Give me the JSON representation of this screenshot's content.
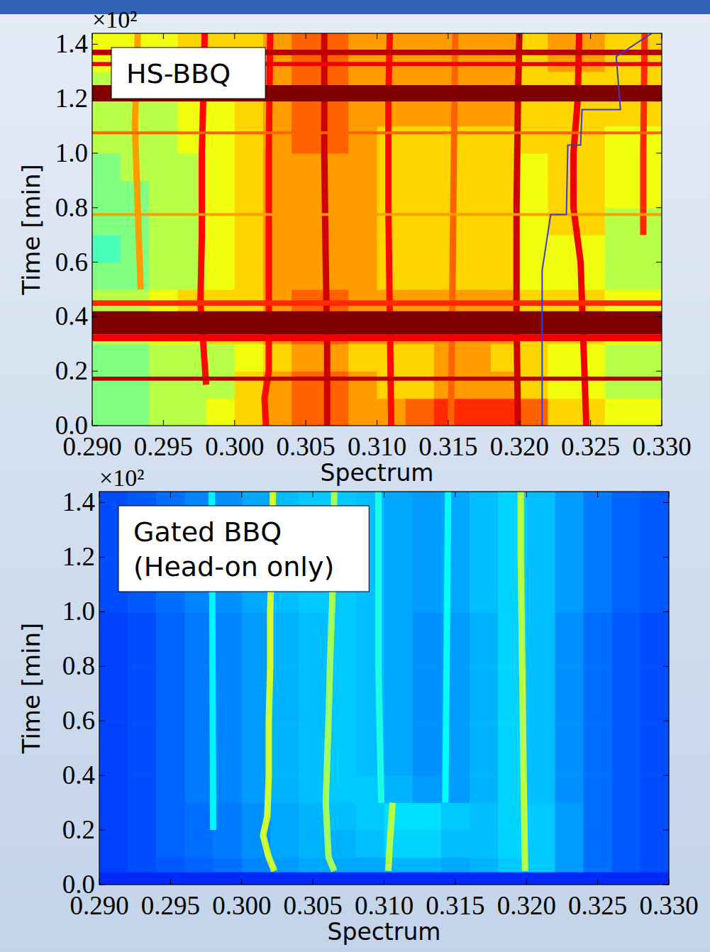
{
  "chart_data": [
    {
      "type": "spectrogram",
      "annotation": [
        "HS-BBQ"
      ],
      "x_label": "Spectrum",
      "y_label": "Time [min]",
      "y_offset_text": "×10²",
      "xlim": [
        0.29,
        0.33
      ],
      "ylim": [
        0,
        1.44
      ],
      "xticks": [
        {
          "value": 0.29,
          "label": "0.290"
        },
        0.295,
        {
          "value": 0.3,
          "label": "0.300"
        },
        0.305,
        {
          "value": 0.31,
          "label": "0.310"
        },
        0.315,
        {
          "value": 0.32,
          "label": "0.320"
        },
        0.325,
        {
          "value": 0.33,
          "label": "0.330"
        }
      ],
      "yticks": [
        {
          "value": 0,
          "label": "0.0"
        },
        0.2,
        0.4,
        0.6,
        0.8,
        {
          "value": 1,
          "label": "1.0"
        },
        1.2,
        1.4
      ],
      "grid": false,
      "zlim": [
        0,
        9
      ],
      "x_edges": [
        0.29,
        0.292,
        0.294,
        0.296,
        0.298,
        0.3,
        0.302,
        0.304,
        0.306,
        0.308,
        0.31,
        0.312,
        0.314,
        0.316,
        0.318,
        0.32,
        0.322,
        0.324,
        0.326,
        0.328,
        0.33
      ],
      "y_edges": [
        0,
        0.1,
        0.2,
        0.3,
        0.4,
        0.5,
        0.6,
        0.7,
        0.8,
        0.9,
        1,
        1.1,
        1.2,
        1.3,
        1.4,
        1.5
      ],
      "cells": [
        [
          4.5,
          4.5,
          5,
          5,
          5.5,
          6,
          6.5,
          7,
          7,
          6.5,
          6.5,
          7,
          7.5,
          7.5,
          7.5,
          7,
          6,
          6,
          5.5,
          5.5
        ],
        [
          4.5,
          4.5,
          5,
          5,
          5,
          6,
          6.5,
          7,
          7,
          6.5,
          6,
          6,
          6.5,
          6.5,
          6.5,
          6,
          5.5,
          5.5,
          5,
          5
        ],
        [
          4.5,
          4.5,
          5,
          5,
          5,
          5.5,
          6,
          6.5,
          6.5,
          6,
          6,
          6,
          6.5,
          6.5,
          6,
          6,
          5.5,
          5.5,
          5,
          5
        ],
        [
          5,
          5,
          5.5,
          5.5,
          6,
          6,
          6.5,
          7,
          7,
          6.5,
          6.5,
          6.5,
          6.5,
          6.5,
          6.5,
          6,
          6,
          6,
          5.5,
          5.5
        ],
        [
          5,
          5,
          5.5,
          6,
          6,
          6,
          6.5,
          7,
          7,
          6.5,
          6.5,
          6.5,
          6.5,
          6.5,
          6.5,
          6,
          6,
          6,
          5.5,
          5.5
        ],
        [
          4.5,
          4.5,
          5,
          5,
          5.5,
          6,
          6.5,
          6.5,
          6.5,
          6.5,
          6,
          6,
          6,
          6,
          6,
          5.5,
          5.5,
          5.5,
          5,
          5
        ],
        [
          4,
          4.5,
          5,
          5,
          5.5,
          6,
          6.5,
          6.5,
          6.5,
          6.5,
          6,
          6,
          6,
          6,
          6,
          5.5,
          5.5,
          5.5,
          5,
          5
        ],
        [
          4.5,
          4.5,
          5,
          5,
          5.5,
          6,
          6.5,
          6.5,
          6.5,
          6.5,
          6,
          6,
          6,
          6,
          6,
          5.5,
          6,
          6,
          5,
          5
        ],
        [
          4.5,
          4.5,
          5,
          5,
          5.5,
          6,
          6.5,
          6.5,
          6.5,
          6.5,
          6,
          6,
          6,
          6,
          6,
          5.5,
          6,
          6,
          5.5,
          5.5
        ],
        [
          4.5,
          5,
          5,
          5,
          5.5,
          6,
          6.5,
          6.5,
          6.5,
          6.5,
          6,
          6,
          6,
          6,
          6,
          5.5,
          6,
          6,
          5.5,
          5.5
        ],
        [
          5,
          5,
          5,
          5.5,
          5.5,
          6,
          6.5,
          7,
          7,
          6.5,
          6,
          6,
          6,
          6,
          6,
          6,
          6,
          6,
          5.5,
          5.5
        ],
        [
          5,
          5,
          5,
          5.5,
          5.5,
          6,
          6.5,
          7,
          7,
          6.5,
          6.5,
          6.5,
          6.5,
          6.5,
          6.5,
          6,
          6,
          6,
          6,
          6
        ],
        [
          5,
          5,
          5,
          5.5,
          5.5,
          6,
          6.5,
          7,
          7,
          6.5,
          6.5,
          6.5,
          6.5,
          6.5,
          6.5,
          6,
          6,
          6,
          6,
          6
        ],
        [
          5.5,
          5.5,
          5.5,
          6,
          6,
          6,
          6.5,
          7,
          7,
          6.5,
          6.5,
          6.5,
          6.5,
          6.5,
          6.5,
          6,
          6.5,
          6.5,
          6,
          6
        ],
        [
          5.5,
          5.5,
          5.5,
          6,
          6,
          6,
          6.5,
          7,
          7,
          6.5,
          6.5,
          6.5,
          6.5,
          6.5,
          6.5,
          6,
          6.5,
          6.5,
          6,
          6
        ]
      ],
      "lines": [
        {
          "x": [
            0.2934,
            0.2932,
            0.293,
            0.2932
          ],
          "y": [
            0.5,
            0.8,
            1.1,
            1.44
          ],
          "value": 6.5
        },
        {
          "x": [
            0.298,
            0.2978,
            0.2976,
            0.2977,
            0.2977,
            0.2978,
            0.2979
          ],
          "y": [
            0.15,
            0.3,
            0.45,
            0.7,
            1,
            1.2,
            1.44
          ],
          "value": 7.8
        },
        {
          "x": [
            0.3022,
            0.3021,
            0.3024,
            0.3024,
            0.3024,
            0.3024,
            0.3025
          ],
          "y": [
            0,
            0.1,
            0.2,
            0.4,
            0.7,
            1,
            1.44
          ],
          "value": 7.8
        },
        {
          "x": [
            0.3065,
            0.3065,
            0.3064,
            0.3063,
            0.3063
          ],
          "y": [
            0,
            0.3,
            0.6,
            1,
            1.44
          ],
          "value": 8.3
        },
        {
          "x": [
            0.311,
            0.3109,
            0.3108,
            0.3108,
            0.3109
          ],
          "y": [
            0,
            0.4,
            0.8,
            1.2,
            1.44
          ],
          "value": 7.8
        },
        {
          "x": [
            0.3152,
            0.3153,
            0.3154,
            0.3155
          ],
          "y": [
            0,
            0.5,
            1,
            1.44
          ],
          "value": 7
        },
        {
          "x": [
            0.3199,
            0.3198,
            0.3198,
            0.3199,
            0.32
          ],
          "y": [
            0,
            0.4,
            0.8,
            1.2,
            1.44
          ],
          "value": 8.3
        },
        {
          "x": [
            0.3247,
            0.3245,
            0.3243,
            0.3238,
            0.3238,
            0.3241,
            0.3242
          ],
          "y": [
            0,
            0.3,
            0.6,
            0.8,
            1,
            1.2,
            1.44
          ],
          "value": 8
        },
        {
          "x": [
            0.3287,
            0.3287,
            0.3288
          ],
          "y": [
            0.7,
            1,
            1.44
          ],
          "value": 7.5
        }
      ],
      "bands": [
        {
          "y": [
            0.165,
            0.18
          ],
          "value": 8.5
        },
        {
          "y": [
            0.31,
            0.335
          ],
          "value": 8
        },
        {
          "y": [
            0.335,
            0.42
          ],
          "value": 9
        },
        {
          "y": [
            0.44,
            0.46
          ],
          "value": 7.5
        },
        {
          "y": [
            0.77,
            0.78
          ],
          "value": 6.5
        },
        {
          "y": [
            1.07,
            1.08
          ],
          "value": 7
        },
        {
          "y": [
            1.19,
            1.25
          ],
          "value": 9
        },
        {
          "y": [
            1.32,
            1.335
          ],
          "value": 8
        },
        {
          "y": [
            1.36,
            1.38
          ],
          "value": 8.5
        }
      ],
      "trace": {
        "x": [
          0.3216,
          0.3216,
          0.3222,
          0.3233,
          0.3234,
          0.3243,
          0.3244,
          0.3271,
          0.3268,
          0.3293
        ],
        "y": [
          0,
          0.57,
          0.775,
          0.775,
          1.03,
          1.03,
          1.16,
          1.16,
          1.355,
          1.44
        ],
        "color": "#3c3cc8"
      }
    },
    {
      "type": "spectrogram",
      "annotation": [
        "Gated BBQ",
        "(Head-on only)"
      ],
      "x_label": "Spectrum",
      "y_label": "Time [min]",
      "y_offset_text": "×10²",
      "xlim": [
        0.29,
        0.33
      ],
      "ylim": [
        0,
        1.44
      ],
      "xticks": [
        {
          "value": 0.29,
          "label": "0.290"
        },
        0.295,
        {
          "value": 0.3,
          "label": "0.300"
        },
        0.305,
        {
          "value": 0.31,
          "label": "0.310"
        },
        0.315,
        {
          "value": 0.32,
          "label": "0.320"
        },
        0.325,
        {
          "value": 0.33,
          "label": "0.330"
        }
      ],
      "yticks": [
        {
          "value": 0,
          "label": "0.0"
        },
        0.2,
        0.4,
        0.6,
        0.8,
        {
          "value": 1,
          "label": "1.0"
        },
        1.2,
        1.4
      ],
      "grid": false,
      "zlim": [
        0,
        9
      ],
      "x_edges": [
        0.29,
        0.292,
        0.294,
        0.296,
        0.298,
        0.3,
        0.302,
        0.304,
        0.306,
        0.308,
        0.31,
        0.312,
        0.314,
        0.316,
        0.318,
        0.32,
        0.322,
        0.324,
        0.326,
        0.328,
        0.33
      ],
      "y_edges": [
        0,
        0.1,
        0.2,
        0.3,
        0.4,
        0.5,
        0.6,
        0.7,
        0.8,
        0.9,
        1,
        1.1,
        1.2,
        1.3,
        1.4,
        1.5
      ],
      "cells": [
        [
          1.7,
          1.8,
          1.9,
          2,
          2.1,
          2.3,
          2.5,
          2.6,
          2.6,
          2.6,
          2.7,
          2.7,
          2.6,
          2.7,
          2.9,
          2.9,
          2.5,
          2.1,
          1.9,
          1.8
        ],
        [
          1.7,
          1.8,
          2,
          2.1,
          2.2,
          2.4,
          2.6,
          2.7,
          2.7,
          2.8,
          3,
          3,
          2.8,
          2.8,
          3,
          2.9,
          2.5,
          2.1,
          1.9,
          1.8
        ],
        [
          1.7,
          1.8,
          2,
          2.1,
          2.2,
          2.4,
          2.6,
          2.7,
          2.8,
          2.9,
          3.1,
          3.1,
          2.9,
          2.8,
          3,
          2.9,
          2.5,
          2.1,
          1.9,
          1.8
        ],
        [
          1.7,
          1.8,
          2,
          2.2,
          2.3,
          2.5,
          2.7,
          2.8,
          2.9,
          2.9,
          2.7,
          2.5,
          2.5,
          2.7,
          3,
          2.8,
          2.4,
          2.1,
          1.9,
          1.8
        ],
        [
          1.7,
          1.8,
          2,
          2.2,
          2.3,
          2.5,
          2.7,
          2.8,
          2.9,
          2.8,
          2.6,
          2.4,
          2.5,
          2.7,
          3,
          2.8,
          2.4,
          2.1,
          1.9,
          1.8
        ],
        [
          1.7,
          1.8,
          2,
          2.2,
          2.3,
          2.5,
          2.7,
          2.8,
          2.9,
          2.8,
          2.6,
          2.4,
          2.5,
          2.7,
          3,
          2.8,
          2.4,
          2.1,
          1.9,
          1.8
        ],
        [
          1.7,
          1.8,
          2,
          2.2,
          2.3,
          2.5,
          2.7,
          2.8,
          2.9,
          2.8,
          2.6,
          2.4,
          2.5,
          2.7,
          3,
          2.8,
          2.4,
          2.1,
          1.9,
          1.8
        ],
        [
          1.7,
          1.8,
          2,
          2.2,
          2.3,
          2.5,
          2.7,
          2.8,
          2.9,
          2.8,
          2.6,
          2.4,
          2.5,
          2.7,
          3,
          2.8,
          2.4,
          2.1,
          1.9,
          1.8
        ],
        [
          1.7,
          1.8,
          2,
          2.2,
          2.3,
          2.5,
          2.7,
          2.8,
          2.9,
          2.8,
          2.6,
          2.4,
          2.5,
          2.7,
          3,
          2.8,
          2.4,
          2.1,
          1.9,
          1.8
        ],
        [
          1.7,
          1.8,
          2,
          2.2,
          2.3,
          2.5,
          2.7,
          2.8,
          2.9,
          2.8,
          2.6,
          2.4,
          2.5,
          2.7,
          3,
          2.8,
          2.4,
          2.1,
          1.9,
          1.8
        ],
        [
          1.8,
          1.9,
          2.1,
          2.3,
          2.4,
          2.6,
          2.8,
          2.9,
          2.9,
          2.8,
          2.6,
          2.5,
          2.6,
          2.8,
          3,
          2.8,
          2.5,
          2.2,
          2,
          1.9
        ],
        [
          1.8,
          1.9,
          2.1,
          2.3,
          2.4,
          2.6,
          2.8,
          2.9,
          2.9,
          2.8,
          2.6,
          2.5,
          2.6,
          2.8,
          3,
          2.8,
          2.5,
          2.2,
          2,
          1.9
        ],
        [
          1.8,
          1.9,
          2.1,
          2.3,
          2.4,
          2.6,
          2.8,
          2.9,
          2.9,
          2.8,
          2.6,
          2.5,
          2.6,
          2.8,
          3,
          2.8,
          2.5,
          2.2,
          2,
          1.9
        ],
        [
          1.8,
          1.9,
          2.1,
          2.3,
          2.4,
          2.6,
          2.8,
          2.9,
          2.9,
          2.8,
          2.6,
          2.5,
          2.6,
          2.8,
          3,
          2.8,
          2.5,
          2.2,
          2,
          1.9
        ],
        [
          1.8,
          1.9,
          2.1,
          2.3,
          2.4,
          2.6,
          2.8,
          2.9,
          2.9,
          2.8,
          2.6,
          2.5,
          2.6,
          2.8,
          3,
          2.8,
          2.5,
          2.2,
          2,
          1.9
        ]
      ],
      "lines": [
        {
          "x": [
            0.3023,
            0.3019,
            0.3015,
            0.3018,
            0.3019,
            0.3019,
            0.302,
            0.302,
            0.3021,
            0.3022
          ],
          "y": [
            0.05,
            0.1,
            0.18,
            0.25,
            0.4,
            0.6,
            0.8,
            1,
            1.2,
            1.44
          ],
          "value": 5.2
        },
        {
          "x": [
            0.3065,
            0.3061,
            0.3059,
            0.3061,
            0.3062,
            0.3064,
            0.3065
          ],
          "y": [
            0.05,
            0.1,
            0.3,
            0.6,
            0.8,
            1.1,
            1.44
          ],
          "value": 4.8
        },
        {
          "x": [
            0.3103,
            0.3104,
            0.3106
          ],
          "y": [
            0.05,
            0.15,
            0.3
          ],
          "value": 5
        },
        {
          "x": [
            0.3098,
            0.3096,
            0.3096
          ],
          "y": [
            0.3,
            0.8,
            1.44
          ],
          "value": 3.6
        },
        {
          "x": [
            0.3199,
            0.3198,
            0.3197,
            0.3196,
            0.3196
          ],
          "y": [
            0.05,
            0.4,
            0.8,
            1.2,
            1.44
          ],
          "value": 5
        },
        {
          "x": [
            0.3143,
            0.3145
          ],
          "y": [
            0.3,
            1.44
          ],
          "value": 3.4
        },
        {
          "x": [
            0.298,
            0.2979
          ],
          "y": [
            0.2,
            1.44
          ],
          "value": 3.3
        }
      ],
      "bands": [
        {
          "y": [
            0,
            0.045
          ],
          "value": 1.5
        }
      ]
    }
  ]
}
